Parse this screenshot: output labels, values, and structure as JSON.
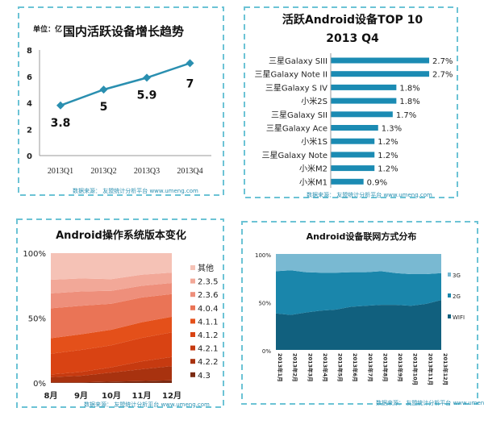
{
  "source_note": "数据来源： 友盟统计分析平台 www.umeng.com",
  "colors": {
    "border": "#6cc3d5",
    "line": "#2a8fb0",
    "bar": "#1b8bb3"
  },
  "chart_data": [
    {
      "type": "line",
      "title": "国内活跃设备增长趋势",
      "ylabel": "单位：亿",
      "categories": [
        "2013Q1",
        "2013Q2",
        "2013Q3",
        "2013Q4"
      ],
      "values": [
        3.8,
        5,
        5.9,
        7
      ],
      "data_labels": [
        "3.8",
        "5",
        "5.9",
        "7"
      ],
      "ylim": [
        0,
        8
      ],
      "yticks": [
        "0",
        "2",
        "4",
        "6",
        "8"
      ],
      "grid": false
    },
    {
      "type": "bar",
      "orientation": "horizontal",
      "title": "活跃Android设备TOP 10",
      "subtitle": "2013 Q4",
      "categories": [
        "三星Galaxy SIII",
        "三星Galaxy Note II",
        "三星Galaxy S IV",
        "小米2S",
        "三星Galaxy SII",
        "三星Galaxy Ace",
        "小米1S",
        "三星Galaxy Note",
        "小米M2",
        "小米M1"
      ],
      "values": [
        2.7,
        2.7,
        1.8,
        1.8,
        1.7,
        1.3,
        1.2,
        1.2,
        1.2,
        0.9
      ],
      "data_labels": [
        "2.7%",
        "2.7%",
        "1.8%",
        "1.8%",
        "1.7%",
        "1.3%",
        "1.2%",
        "1.2%",
        "1.2%",
        "0.9%"
      ]
    },
    {
      "type": "area",
      "stacked": "percent",
      "title": "Android操作系统版本变化",
      "categories": [
        "8月",
        "9月",
        "10月",
        "11月",
        "12月"
      ],
      "yticks": [
        "0%",
        "50%",
        "100%"
      ],
      "legend": "right",
      "series": [
        {
          "name": "4.3",
          "values": [
            0.5,
            0.5,
            1,
            1.5,
            2
          ],
          "color": "#7a2a12"
        },
        {
          "name": "4.2.2",
          "values": [
            4,
            5,
            7,
            9,
            11
          ],
          "color": "#a8320f"
        },
        {
          "name": "4.2.1",
          "values": [
            2,
            3,
            4,
            6,
            7
          ],
          "color": "#c63a10"
        },
        {
          "name": "4.1.2",
          "values": [
            16,
            17,
            17,
            18,
            19
          ],
          "color": "#d94313"
        },
        {
          "name": "4.1.1",
          "values": [
            12,
            12,
            12,
            12,
            12
          ],
          "color": "#e4501a"
        },
        {
          "name": "4.0.4",
          "values": [
            23,
            22,
            20,
            19,
            17.5
          ],
          "color": "#ea7456"
        },
        {
          "name": "2.3.6",
          "values": [
            11.5,
            11,
            10,
            9,
            8.5
          ],
          "color": "#ee8f7b"
        },
        {
          "name": "2.3.5",
          "values": [
            10.5,
            10,
            9,
            8.5,
            8
          ],
          "color": "#f2a898"
        },
        {
          "name": "其他",
          "values": [
            20.5,
            19.5,
            20,
            16.5,
            15
          ],
          "color": "#f5c2b6"
        }
      ]
    },
    {
      "type": "area",
      "stacked": "percent",
      "title": "Android设备联网方式分布",
      "categories": [
        "2013年1月",
        "2013年2月",
        "2013年3月",
        "2013年4月",
        "2013年5月",
        "2013年6月",
        "2013年7月",
        "2013年8月",
        "2013年9月",
        "2013年10月",
        "2013年11月",
        "2013年12月"
      ],
      "yticks": [
        "0%",
        "50%",
        "100%"
      ],
      "legend": "right",
      "series": [
        {
          "name": "WIFI",
          "values": [
            38,
            36.5,
            39,
            41,
            42,
            45,
            46,
            47,
            47,
            46,
            48,
            52
          ],
          "color": "#11607e"
        },
        {
          "name": "2G",
          "values": [
            44,
            46.5,
            42,
            39.5,
            38.5,
            36,
            35,
            35,
            33,
            33,
            31,
            28
          ],
          "color": "#1a86ab"
        },
        {
          "name": "3G",
          "values": [
            18,
            17,
            19,
            19.5,
            19.5,
            19,
            19,
            18,
            20,
            21,
            21,
            20
          ],
          "color": "#79b9d2"
        }
      ]
    }
  ]
}
